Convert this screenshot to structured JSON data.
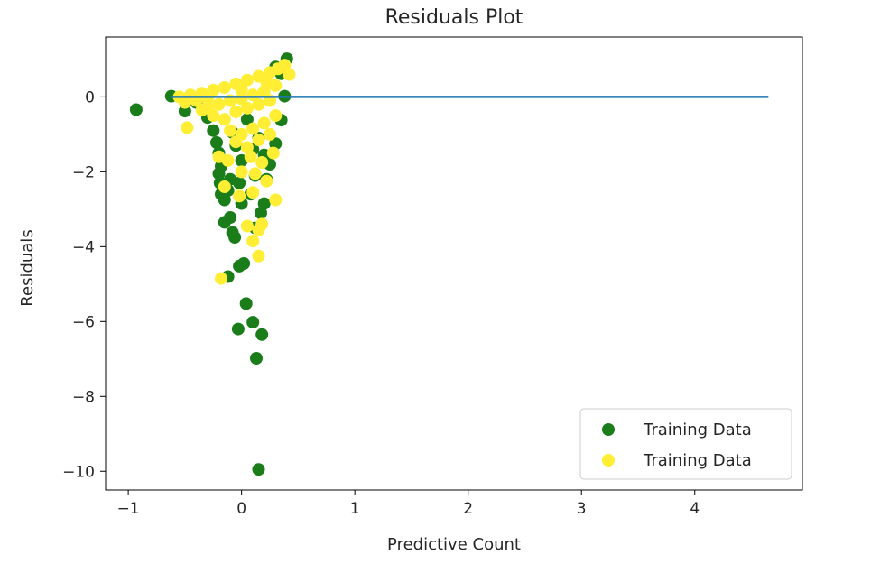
{
  "chart_data": {
    "type": "scatter",
    "title": "Residuals Plot",
    "xlabel": "Predictive Count",
    "ylabel": "Residuals",
    "xlim": [
      -1.2,
      4.95
    ],
    "ylim": [
      -10.5,
      1.6
    ],
    "xticks": [
      -1,
      0,
      1,
      2,
      3,
      4
    ],
    "yticks": [
      0,
      -2,
      -4,
      -6,
      -8,
      -10
    ],
    "xtick_labels": [
      "−1",
      "0",
      "1",
      "2",
      "3",
      "4"
    ],
    "ytick_labels": [
      "0",
      "−2",
      "−4",
      "−6",
      "−8",
      "−10"
    ],
    "grid": false,
    "legend_position": "bottom-right",
    "hline": {
      "y": 0,
      "x_range": [
        -0.62,
        4.65
      ],
      "color": "#1f77b4"
    },
    "series": [
      {
        "name": "Training Data",
        "color": "#1a7d1a",
        "points": [
          [
            -0.93,
            -0.34
          ],
          [
            -0.62,
            0.02
          ],
          [
            -0.5,
            -0.38
          ],
          [
            -0.4,
            -0.15
          ],
          [
            -0.3,
            -0.55
          ],
          [
            -0.25,
            -0.9
          ],
          [
            -0.22,
            -1.22
          ],
          [
            -0.2,
            -1.5
          ],
          [
            -0.18,
            -1.85
          ],
          [
            -0.2,
            -2.05
          ],
          [
            -0.19,
            -2.3
          ],
          [
            -0.18,
            -2.6
          ],
          [
            -0.15,
            -2.75
          ],
          [
            -0.12,
            -2.5
          ],
          [
            -0.1,
            -2.2
          ],
          [
            -0.15,
            -3.35
          ],
          [
            -0.1,
            -3.22
          ],
          [
            -0.08,
            -3.62
          ],
          [
            -0.06,
            -3.75
          ],
          [
            -0.12,
            -4.8
          ],
          [
            -0.02,
            -4.52
          ],
          [
            0.02,
            -4.45
          ],
          [
            0.04,
            -5.52
          ],
          [
            -0.03,
            -6.2
          ],
          [
            0.1,
            -6.02
          ],
          [
            0.18,
            -6.35
          ],
          [
            0.13,
            -6.98
          ],
          [
            0.15,
            -9.95
          ],
          [
            0.12,
            -3.5
          ],
          [
            0.17,
            -3.1
          ],
          [
            0.2,
            -2.85
          ],
          [
            0.08,
            -2.6
          ],
          [
            0.25,
            -1.8
          ],
          [
            0.3,
            -1.25
          ],
          [
            0.35,
            -0.62
          ],
          [
            0.38,
            0.02
          ],
          [
            0.35,
            0.62
          ],
          [
            0.4,
            1.02
          ],
          [
            0.3,
            0.8
          ],
          [
            0.2,
            -1.55
          ],
          [
            0.12,
            -2.1
          ],
          [
            0.0,
            -1.7
          ],
          [
            -0.05,
            -1.3
          ],
          [
            -0.08,
            -0.95
          ],
          [
            0.05,
            -0.6
          ],
          [
            0.0,
            -2.85
          ],
          [
            0.22,
            -2.2
          ],
          [
            0.15,
            -1.1
          ],
          [
            -0.02,
            -2.3
          ],
          [
            0.1,
            -1.4
          ]
        ]
      },
      {
        "name": "Training Data",
        "color": "#ffee33",
        "points": [
          [
            -0.55,
            0.0
          ],
          [
            -0.45,
            0.05
          ],
          [
            -0.35,
            0.1
          ],
          [
            -0.25,
            0.18
          ],
          [
            -0.15,
            0.25
          ],
          [
            -0.05,
            0.35
          ],
          [
            0.05,
            0.45
          ],
          [
            0.15,
            0.55
          ],
          [
            0.25,
            0.65
          ],
          [
            0.32,
            0.75
          ],
          [
            0.38,
            0.85
          ],
          [
            0.42,
            0.6
          ],
          [
            -0.5,
            -0.15
          ],
          [
            -0.4,
            -0.1
          ],
          [
            -0.3,
            -0.05
          ],
          [
            -0.2,
            -0.2
          ],
          [
            -0.1,
            -0.1
          ],
          [
            0.0,
            -0.05
          ],
          [
            0.1,
            0.05
          ],
          [
            0.2,
            0.15
          ],
          [
            0.3,
            0.3
          ],
          [
            -0.48,
            -0.82
          ],
          [
            -0.35,
            -0.35
          ],
          [
            -0.25,
            -0.5
          ],
          [
            -0.15,
            -0.6
          ],
          [
            -0.05,
            -0.4
          ],
          [
            0.05,
            -0.3
          ],
          [
            0.15,
            -0.2
          ],
          [
            0.25,
            -0.1
          ],
          [
            0.3,
            -0.5
          ],
          [
            -0.1,
            -0.9
          ],
          [
            0.0,
            -1.0
          ],
          [
            0.1,
            -0.85
          ],
          [
            0.2,
            -0.7
          ],
          [
            -0.05,
            -1.2
          ],
          [
            0.05,
            -1.35
          ],
          [
            0.15,
            -1.15
          ],
          [
            0.25,
            -1.0
          ],
          [
            -0.2,
            -1.6
          ],
          [
            -0.12,
            -1.7
          ],
          [
            0.08,
            -1.6
          ],
          [
            0.18,
            -1.75
          ],
          [
            0.28,
            -1.5
          ],
          [
            -0.15,
            -2.4
          ],
          [
            0.0,
            -2.0
          ],
          [
            0.12,
            -2.05
          ],
          [
            0.22,
            -2.25
          ],
          [
            -0.02,
            -2.65
          ],
          [
            0.1,
            -2.55
          ],
          [
            0.3,
            -2.75
          ],
          [
            0.05,
            -3.45
          ],
          [
            0.15,
            -3.55
          ],
          [
            0.18,
            -3.4
          ],
          [
            0.1,
            -3.85
          ],
          [
            0.15,
            -4.25
          ],
          [
            -0.18,
            -4.85
          ],
          [
            -0.3,
            -0.3
          ],
          [
            0.22,
            0.4
          ],
          [
            0.0,
            0.2
          ],
          [
            -0.35,
            0.05
          ]
        ]
      }
    ]
  }
}
